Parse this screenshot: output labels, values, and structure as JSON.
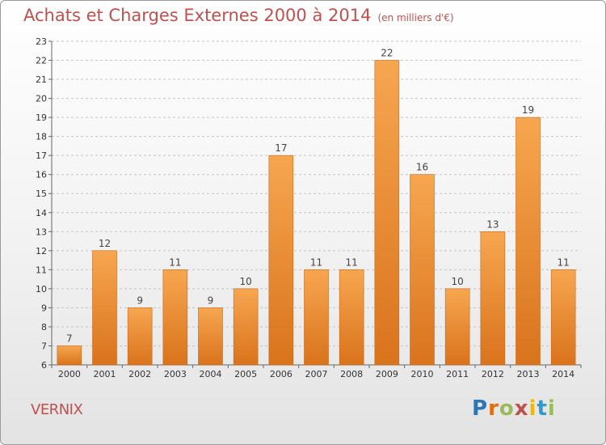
{
  "title": "Achats et Charges Externes 2000 à 2014",
  "title_unit": "(en milliers d'€)",
  "location": "VERNIX",
  "logo": {
    "letters": [
      "P",
      "r",
      "o",
      "x",
      "i",
      "t",
      "i"
    ],
    "colors": [
      "#2e75b6",
      "#e46c0a",
      "#9bbb59",
      "#c0504d",
      "#f5b800",
      "#2e9ad0",
      "#9bbb59"
    ]
  },
  "colors": {
    "title": "#c0504d",
    "bar_top": "#f7a650",
    "bar_bottom": "#d9731c",
    "bar_edge": "#c8681a"
  },
  "chart_data": {
    "type": "bar",
    "categories": [
      "2000",
      "2001",
      "2002",
      "2003",
      "2004",
      "2005",
      "2006",
      "2007",
      "2008",
      "2009",
      "2010",
      "2011",
      "2012",
      "2013",
      "2014"
    ],
    "values": [
      7,
      12,
      9,
      11,
      9,
      10,
      17,
      11,
      11,
      22,
      16,
      10,
      13,
      19,
      11
    ],
    "ylim": [
      6,
      23
    ],
    "yticks": [
      6,
      7,
      8,
      9,
      10,
      11,
      12,
      13,
      14,
      15,
      16,
      17,
      18,
      19,
      20,
      21,
      22,
      23
    ],
    "grid": "horizontal dashed",
    "title": "Achats et Charges Externes 2000 à 2014",
    "xlabel": "",
    "ylabel": ""
  }
}
